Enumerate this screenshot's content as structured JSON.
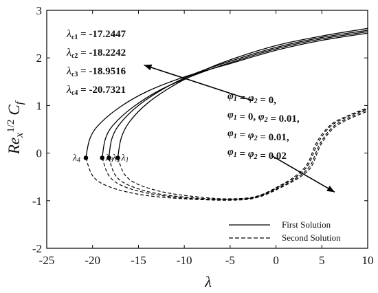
{
  "chart_data": {
    "type": "line",
    "xlabel": "λ",
    "ylabel_main": "Re",
    "ylabel_sub": "x",
    "ylabel_sup": "1/2",
    "ylabel_tail": "C",
    "ylabel_tail_sub": "f",
    "xlim": [
      -25,
      10
    ],
    "ylim": [
      -2,
      3
    ],
    "xticks": [
      -25,
      -20,
      -15,
      -10,
      -5,
      0,
      5,
      10
    ],
    "yticks": [
      -2,
      -1,
      0,
      1,
      2,
      3
    ],
    "critical_values": [
      {
        "sym": "λ",
        "sub": "c1",
        "value": "-17.2447"
      },
      {
        "sym": "λ",
        "sub": "c2",
        "value": "-18.2242"
      },
      {
        "sym": "λ",
        "sub": "c3",
        "value": "-18.9516"
      },
      {
        "sym": "λ",
        "sub": "c4",
        "value": "-20.7321"
      }
    ],
    "point_labels": [
      {
        "sym": "λ",
        "sub": "1",
        "x": -17.2447
      },
      {
        "sym": "λ",
        "sub": "2",
        "x": -18.2242
      },
      {
        "sym": "λ",
        "sub": "3",
        "x": -18.9516
      },
      {
        "sym": "λ",
        "sub": "4",
        "x": -20.7321
      }
    ],
    "cases": [
      "φ1 = φ2 = 0,",
      "φ1 = 0, φ2 = 0.01,",
      "φ1 = φ2 = 0.01,",
      "φ1 = φ2 = 0.02"
    ],
    "legend": [
      {
        "label": "First Solution",
        "style": "solid"
      },
      {
        "label": "Second Solution",
        "style": "dashed"
      }
    ],
    "series": [
      {
        "critical_x": -17.2447,
        "critical_y": -0.1,
        "first_solution": [
          [
            -17.2447,
            -0.1
          ],
          [
            -16.9,
            0.3
          ],
          [
            -16,
            0.65
          ],
          [
            -14,
            1.05
          ],
          [
            -11,
            1.44
          ],
          [
            -8,
            1.73
          ],
          [
            -5,
            1.96
          ],
          [
            0,
            2.26
          ],
          [
            5,
            2.46
          ],
          [
            10,
            2.62
          ]
        ],
        "second_solution": [
          [
            -17.2447,
            -0.1
          ],
          [
            -16.5,
            -0.45
          ],
          [
            -15,
            -0.66
          ],
          [
            -12,
            -0.83
          ],
          [
            -8,
            -0.93
          ],
          [
            -5,
            -0.96
          ],
          [
            -2,
            -0.9
          ],
          [
            1,
            -0.62
          ],
          [
            2.5,
            -0.42
          ],
          [
            3.5,
            -0.2
          ],
          [
            4.5,
            0.25
          ],
          [
            6,
            0.6
          ],
          [
            8,
            0.8
          ],
          [
            10,
            0.95
          ]
        ]
      },
      {
        "critical_x": -18.2242,
        "critical_y": -0.1,
        "first_solution": [
          [
            -18.2242,
            -0.1
          ],
          [
            -17.9,
            0.3
          ],
          [
            -17,
            0.62
          ],
          [
            -15,
            1.0
          ],
          [
            -12,
            1.38
          ],
          [
            -9,
            1.66
          ],
          [
            -5,
            1.93
          ],
          [
            0,
            2.22
          ],
          [
            5,
            2.43
          ],
          [
            10,
            2.58
          ]
        ],
        "second_solution": [
          [
            -18.2242,
            -0.1
          ],
          [
            -17.5,
            -0.47
          ],
          [
            -16,
            -0.68
          ],
          [
            -13,
            -0.85
          ],
          [
            -9,
            -0.94
          ],
          [
            -5,
            -0.97
          ],
          [
            -2,
            -0.91
          ],
          [
            1,
            -0.64
          ],
          [
            2.6,
            -0.44
          ],
          [
            3.6,
            -0.22
          ],
          [
            4.6,
            0.22
          ],
          [
            6,
            0.57
          ],
          [
            8,
            0.78
          ],
          [
            10,
            0.93
          ]
        ]
      },
      {
        "critical_x": -18.9516,
        "critical_y": -0.1,
        "first_solution": [
          [
            -18.9516,
            -0.1
          ],
          [
            -18.6,
            0.3
          ],
          [
            -17.7,
            0.6
          ],
          [
            -15.5,
            0.98
          ],
          [
            -12.5,
            1.34
          ],
          [
            -9,
            1.63
          ],
          [
            -5,
            1.9
          ],
          [
            0,
            2.19
          ],
          [
            5,
            2.4
          ],
          [
            10,
            2.55
          ]
        ],
        "second_solution": [
          [
            -18.9516,
            -0.1
          ],
          [
            -18.2,
            -0.48
          ],
          [
            -16.6,
            -0.7
          ],
          [
            -13.5,
            -0.86
          ],
          [
            -9.5,
            -0.95
          ],
          [
            -5,
            -0.98
          ],
          [
            -2,
            -0.92
          ],
          [
            1,
            -0.66
          ],
          [
            2.7,
            -0.46
          ],
          [
            3.8,
            -0.24
          ],
          [
            4.8,
            0.2
          ],
          [
            6.2,
            0.55
          ],
          [
            8,
            0.75
          ],
          [
            10,
            0.91
          ]
        ]
      },
      {
        "critical_x": -20.7321,
        "critical_y": -0.1,
        "first_solution": [
          [
            -20.7321,
            -0.1
          ],
          [
            -20.3,
            0.3
          ],
          [
            -19.3,
            0.6
          ],
          [
            -17,
            0.97
          ],
          [
            -14,
            1.3
          ],
          [
            -10,
            1.6
          ],
          [
            -5,
            1.88
          ],
          [
            0,
            2.16
          ],
          [
            5,
            2.37
          ],
          [
            10,
            2.52
          ]
        ],
        "second_solution": [
          [
            -20.7321,
            -0.1
          ],
          [
            -19.9,
            -0.5
          ],
          [
            -18,
            -0.72
          ],
          [
            -14.5,
            -0.88
          ],
          [
            -10,
            -0.96
          ],
          [
            -5,
            -0.99
          ],
          [
            -2,
            -0.93
          ],
          [
            1,
            -0.68
          ],
          [
            2.8,
            -0.48
          ],
          [
            3.9,
            -0.27
          ],
          [
            4.9,
            0.18
          ],
          [
            6.3,
            0.53
          ],
          [
            8,
            0.72
          ],
          [
            10,
            0.88
          ]
        ]
      }
    ],
    "arrows": [
      {
        "from": [
          -2.5,
          1.1
        ],
        "to": [
          -14.4,
          1.85
        ]
      },
      {
        "from": [
          -0.5,
          -0.05
        ],
        "to": [
          6.4,
          -0.82
        ]
      }
    ]
  }
}
